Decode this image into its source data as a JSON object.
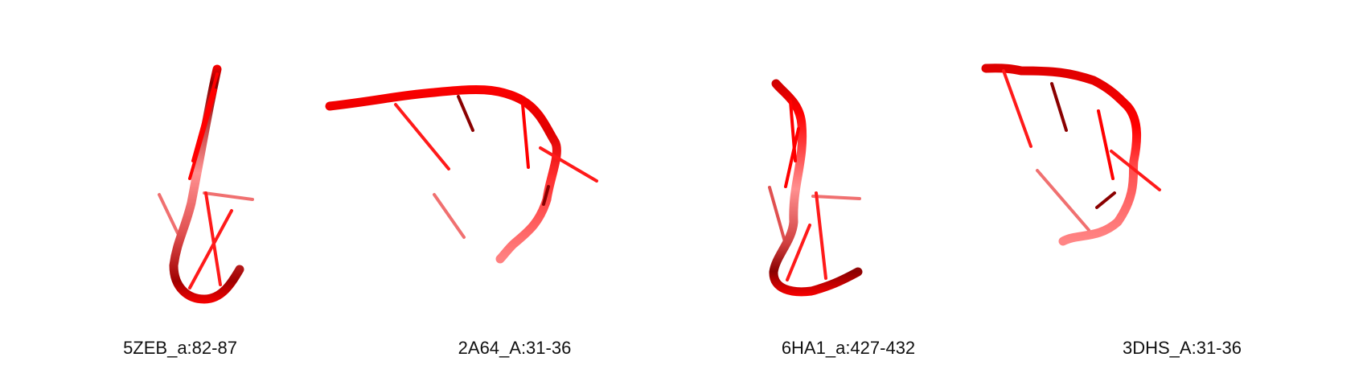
{
  "structures": [
    {
      "label": "5ZEB_a:82-87"
    },
    {
      "label": "2A64_A:31-36"
    },
    {
      "label": "6HA1_a:427-432"
    },
    {
      "label": "3DHS_A:31-36"
    }
  ],
  "colors": {
    "backbone_dark": "#8a0000",
    "backbone": "#ff0000",
    "backbone_light": "#ff8080",
    "base": "#ff1a1a",
    "base_light": "#f07070"
  }
}
